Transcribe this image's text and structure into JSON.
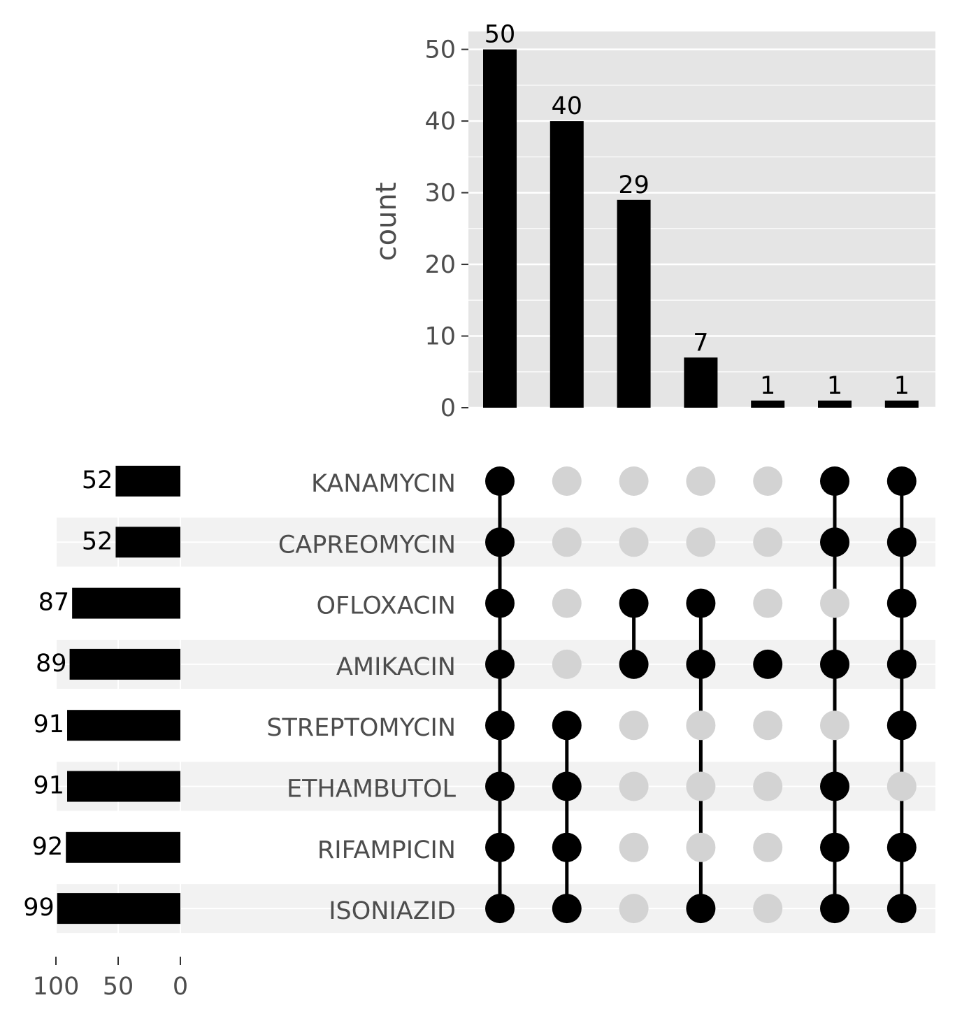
{
  "chart_data": {
    "type": "bar",
    "kind": "upset",
    "ylabel": "count",
    "ylim": [
      0,
      52.5
    ],
    "yticks": [
      0,
      10,
      20,
      30,
      40,
      50
    ],
    "set_size_ticks": [
      100,
      50,
      0
    ],
    "set_size_xlim": [
      0,
      100
    ],
    "sets": [
      "KANAMYCIN",
      "CAPREOMYCIN",
      "OFLOXACIN",
      "AMIKACIN",
      "STREPTOMYCIN",
      "ETHAMBUTOL",
      "RIFAMPICIN",
      "ISONIAZID"
    ],
    "set_sizes": [
      52,
      52,
      87,
      89,
      91,
      91,
      92,
      99
    ],
    "intersections": [
      {
        "count": 50,
        "members": [
          "KANAMYCIN",
          "CAPREOMYCIN",
          "OFLOXACIN",
          "AMIKACIN",
          "STREPTOMYCIN",
          "ETHAMBUTOL",
          "RIFAMPICIN",
          "ISONIAZID"
        ]
      },
      {
        "count": 40,
        "members": [
          "STREPTOMYCIN",
          "ETHAMBUTOL",
          "RIFAMPICIN",
          "ISONIAZID"
        ]
      },
      {
        "count": 29,
        "members": [
          "OFLOXACIN",
          "AMIKACIN"
        ]
      },
      {
        "count": 7,
        "members": [
          "OFLOXACIN",
          "AMIKACIN",
          "ISONIAZID"
        ]
      },
      {
        "count": 1,
        "members": [
          "AMIKACIN"
        ]
      },
      {
        "count": 1,
        "members": [
          "KANAMYCIN",
          "CAPREOMYCIN",
          "AMIKACIN",
          "ETHAMBUTOL",
          "RIFAMPICIN",
          "ISONIAZID"
        ]
      },
      {
        "count": 1,
        "members": [
          "KANAMYCIN",
          "CAPREOMYCIN",
          "OFLOXACIN",
          "AMIKACIN",
          "STREPTOMYCIN",
          "RIFAMPICIN",
          "ISONIAZID"
        ]
      }
    ],
    "grid": true,
    "colors": {
      "panel": "#e5e5e5",
      "stripe": "#f2f2f2",
      "bar": "#000000",
      "dot_on": "#000000",
      "dot_off": "#d3d3d3",
      "gridline": "#ffffff",
      "tick_text": "#4d4d4d"
    }
  }
}
